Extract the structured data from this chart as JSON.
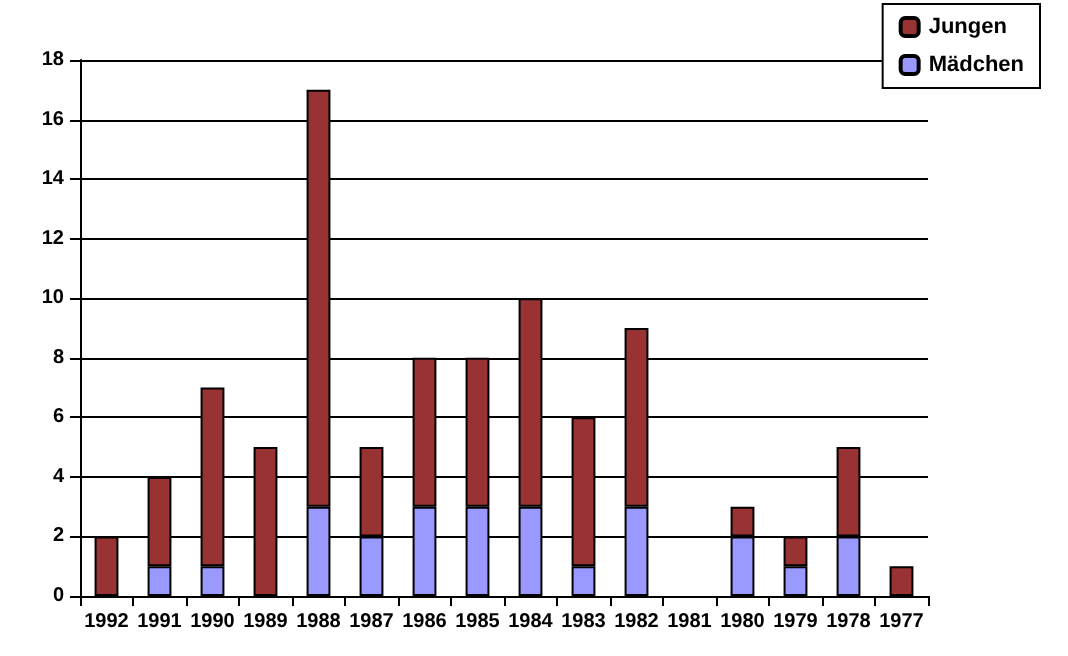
{
  "chart_data": {
    "type": "bar",
    "stacked": true,
    "categories": [
      "1992",
      "1991",
      "1990",
      "1989",
      "1988",
      "1987",
      "1986",
      "1985",
      "1984",
      "1983",
      "1982",
      "1981",
      "1980",
      "1979",
      "1978",
      "1977"
    ],
    "series": [
      {
        "name": "Mädchen",
        "color": "#9999ff",
        "values": [
          0,
          1,
          1,
          0,
          3,
          2,
          3,
          3,
          3,
          1,
          3,
          0,
          2,
          1,
          2,
          0
        ]
      },
      {
        "name": "Jungen",
        "color": "#993333",
        "values": [
          2,
          3,
          6,
          5,
          14,
          3,
          5,
          5,
          7,
          5,
          6,
          0,
          1,
          1,
          3,
          1
        ]
      }
    ],
    "ylim": [
      0,
      18
    ],
    "yticks": [
      0,
      2,
      4,
      6,
      8,
      10,
      12,
      14,
      16,
      18
    ],
    "grid": "y",
    "legend": "top right"
  }
}
